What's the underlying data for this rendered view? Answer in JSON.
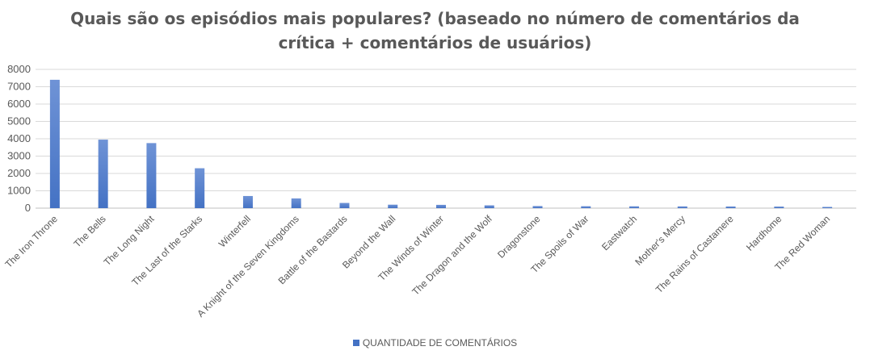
{
  "chart_data": {
    "type": "bar",
    "title_lines": [
      "Quais são os episódios mais populares? (baseado no número de comentários da",
      "crítica + comentários de usuários)"
    ],
    "categories": [
      "The Iron Throne",
      "The Bells",
      "The Long Night",
      "The Last of the Starks",
      "Winterfell",
      "A Knight of the Seven Kingdoms",
      "Battle of the Bastards",
      "Beyond the Wall",
      "The Winds of Winter",
      "The Dragon and the Wolf",
      "Dragonstone",
      "The Spoils of War",
      "Eastwatch",
      "Mother's Mercy",
      "The Rains of Castamere",
      "Hardhome",
      "The Red Woman"
    ],
    "series": [
      {
        "name": "QUANTIDADE DE COMENTÁRIOS",
        "values": [
          7400,
          3950,
          3750,
          2300,
          700,
          560,
          300,
          200,
          190,
          160,
          120,
          110,
          105,
          100,
          95,
          90,
          70
        ],
        "color": "#4472C4"
      }
    ],
    "ylim": [
      0,
      8000
    ],
    "yticks": [
      0,
      1000,
      2000,
      3000,
      4000,
      5000,
      6000,
      7000,
      8000
    ],
    "grid": true,
    "legend_position": "bottom"
  }
}
